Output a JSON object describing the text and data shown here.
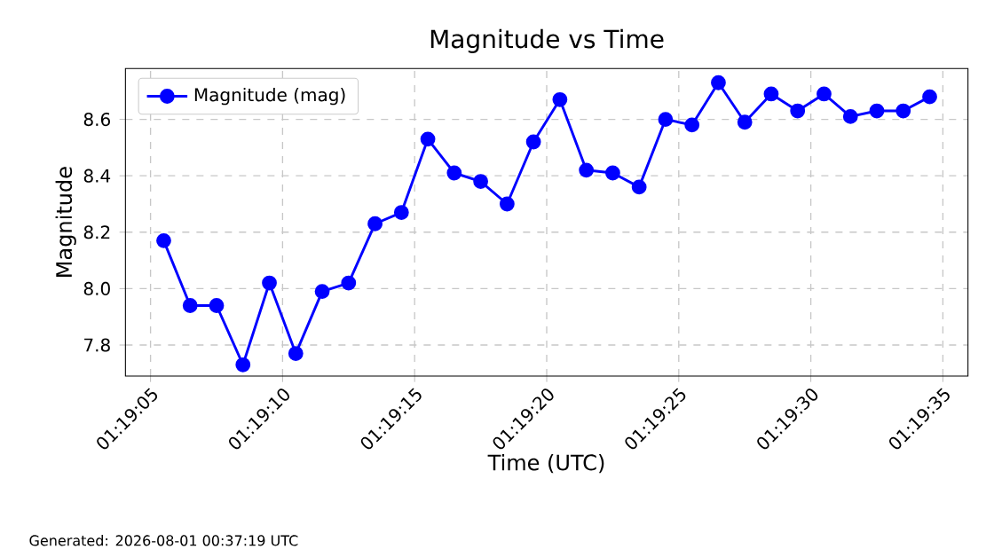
{
  "chart_data": {
    "type": "line",
    "title": "Magnitude vs Time",
    "xlabel": "Time (UTC)",
    "ylabel": "Magnitude",
    "annotations": [
      "Generated: 2026-08-01 00:37:19 UTC"
    ],
    "x": [
      1.3181944,
      1.3184722,
      1.31875,
      1.3190278,
      1.3193056,
      1.3195833,
      1.3198611,
      1.3201389,
      1.3204167,
      1.3206944,
      1.3209722,
      1.32125,
      1.3215278,
      1.3218056,
      1.3220833,
      1.3223611,
      1.3226389,
      1.3229167,
      1.3231944,
      1.3234722,
      1.32375,
      1.3240278,
      1.3243056,
      1.3245833,
      1.3248611,
      1.3251389,
      1.3254167,
      1.3256944,
      1.3259722,
      1.32625
    ],
    "series": [
      {
        "name": "Magnitude (mag)",
        "color": "#0000ff",
        "values": [
          8.17,
          7.94,
          7.94,
          7.73,
          8.02,
          7.77,
          7.99,
          8.02,
          8.23,
          8.27,
          8.53,
          8.41,
          8.38,
          8.3,
          8.52,
          8.67,
          8.42,
          8.41,
          8.36,
          8.6,
          8.58,
          8.73,
          8.59,
          8.69,
          8.63,
          8.69,
          8.61,
          8.63,
          8.63,
          8.68
        ]
      }
    ],
    "xlim": [
      1.3177917,
      1.3266528
    ],
    "xticks": [
      {
        "value": 1.3180556,
        "label": "01:19:05"
      },
      {
        "value": 1.3194444,
        "label": "01:19:10"
      },
      {
        "value": 1.3208333,
        "label": "01:19:15"
      },
      {
        "value": 1.3222222,
        "label": "01:19:20"
      },
      {
        "value": 1.3236111,
        "label": "01:19:25"
      },
      {
        "value": 1.325,
        "label": "01:19:30"
      },
      {
        "value": 1.3263889,
        "label": "01:19:35"
      }
    ],
    "ylim": [
      7.69,
      8.78
    ],
    "yticks": [
      {
        "value": 7.8,
        "label": "7.8"
      },
      {
        "value": 8.0,
        "label": "8.0"
      },
      {
        "value": 8.2,
        "label": "8.2"
      },
      {
        "value": 8.4,
        "label": "8.4"
      },
      {
        "value": 8.6,
        "label": "8.6"
      }
    ],
    "grid": true,
    "legend": "top left",
    "marker": "circle",
    "line_style": "solid"
  }
}
